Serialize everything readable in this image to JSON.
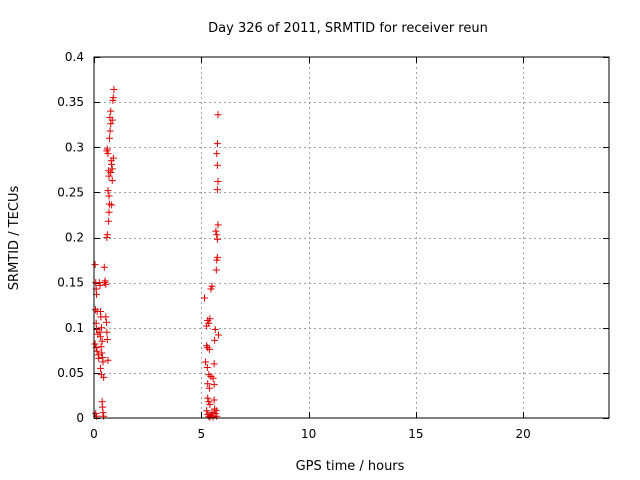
{
  "chart_data": {
    "type": "scatter",
    "title": "Day 326 of 2011, SRMTID for receiver reun",
    "xlabel": "GPS time / hours",
    "ylabel": "SRMTID / TECUs",
    "xlim": [
      0,
      24
    ],
    "ylim": [
      0,
      0.4
    ],
    "x_ticks": [
      0,
      5,
      10,
      15,
      20
    ],
    "x_tick_labels": [
      "0",
      "5",
      "10",
      "15",
      "20"
    ],
    "y_ticks": [
      0,
      0.05,
      0.1,
      0.15,
      0.2,
      0.25,
      0.3,
      0.35,
      0.4
    ],
    "y_tick_labels": [
      "0",
      "0.05",
      "0.1",
      "0.15",
      "0.2",
      "0.25",
      "0.3",
      "0.35",
      "0.4"
    ],
    "grid": true,
    "marker": "+",
    "color": "#e00000",
    "series": [
      {
        "points": [
          [
            0.05,
            0.17
          ],
          [
            0.08,
            0.15
          ],
          [
            0.1,
            0.143
          ],
          [
            0.12,
            0.137
          ],
          [
            0.07,
            0.12
          ],
          [
            0.15,
            0.118
          ],
          [
            0.1,
            0.105
          ],
          [
            0.12,
            0.098
          ],
          [
            0.18,
            0.093
          ],
          [
            0.05,
            0.082
          ],
          [
            0.1,
            0.078
          ],
          [
            0.14,
            0.074
          ],
          [
            0.2,
            0.07
          ],
          [
            0.22,
            0.066
          ],
          [
            0.08,
            0.005
          ],
          [
            0.12,
            0.002
          ],
          [
            0.25,
            0.15
          ],
          [
            0.28,
            0.147
          ],
          [
            0.3,
            0.118
          ],
          [
            0.32,
            0.112
          ],
          [
            0.35,
            0.1
          ],
          [
            0.27,
            0.095
          ],
          [
            0.3,
            0.09
          ],
          [
            0.38,
            0.085
          ],
          [
            0.33,
            0.079
          ],
          [
            0.36,
            0.072
          ],
          [
            0.4,
            0.067
          ],
          [
            0.42,
            0.062
          ],
          [
            0.3,
            0.055
          ],
          [
            0.35,
            0.048
          ],
          [
            0.45,
            0.045
          ],
          [
            0.38,
            0.018
          ],
          [
            0.4,
            0.012
          ],
          [
            0.42,
            0.006
          ],
          [
            0.45,
            0.002
          ],
          [
            0.5,
            0.15
          ],
          [
            0.52,
            0.152
          ],
          [
            0.55,
            0.148
          ],
          [
            0.48,
            0.167
          ],
          [
            0.55,
            0.112
          ],
          [
            0.58,
            0.106
          ],
          [
            0.6,
            0.095
          ],
          [
            0.62,
            0.087
          ],
          [
            0.65,
            0.064
          ],
          [
            0.6,
            0.2
          ],
          [
            0.62,
            0.203
          ],
          [
            0.6,
            0.296
          ],
          [
            0.62,
            0.298
          ],
          [
            0.65,
            0.293
          ],
          [
            0.68,
            0.274
          ],
          [
            0.7,
            0.268
          ],
          [
            0.65,
            0.252
          ],
          [
            0.7,
            0.246
          ],
          [
            0.72,
            0.237
          ],
          [
            0.7,
            0.228
          ],
          [
            0.68,
            0.218
          ],
          [
            0.72,
            0.31
          ],
          [
            0.75,
            0.318
          ],
          [
            0.78,
            0.326
          ],
          [
            0.74,
            0.333
          ],
          [
            0.78,
            0.34
          ],
          [
            0.8,
            0.285
          ],
          [
            0.82,
            0.281
          ],
          [
            0.85,
            0.276
          ],
          [
            0.78,
            0.272
          ],
          [
            0.85,
            0.263
          ],
          [
            0.82,
            0.236
          ],
          [
            0.85,
            0.33
          ],
          [
            0.88,
            0.352
          ],
          [
            0.9,
            0.355
          ],
          [
            0.93,
            0.364
          ],
          [
            0.9,
            0.288
          ],
          [
            5.15,
            0.133
          ],
          [
            5.3,
            0.108
          ],
          [
            5.35,
            0.105
          ],
          [
            5.25,
            0.102
          ],
          [
            5.4,
            0.11
          ],
          [
            5.25,
            0.08
          ],
          [
            5.3,
            0.078
          ],
          [
            5.38,
            0.076
          ],
          [
            5.2,
            0.062
          ],
          [
            5.28,
            0.056
          ],
          [
            5.35,
            0.048
          ],
          [
            5.45,
            0.046
          ],
          [
            5.3,
            0.038
          ],
          [
            5.38,
            0.033
          ],
          [
            5.3,
            0.022
          ],
          [
            5.35,
            0.018
          ],
          [
            5.4,
            0.015
          ],
          [
            5.25,
            0.008
          ],
          [
            5.3,
            0.004
          ],
          [
            5.35,
            0.002
          ],
          [
            5.4,
            0.001
          ],
          [
            5.45,
            0.003
          ],
          [
            5.5,
            0.006
          ],
          [
            5.55,
            0.001
          ],
          [
            5.45,
            0.143
          ],
          [
            5.5,
            0.146
          ],
          [
            5.6,
            0.06
          ],
          [
            5.62,
            0.086
          ],
          [
            5.65,
            0.098
          ],
          [
            5.55,
            0.044
          ],
          [
            5.6,
            0.02
          ],
          [
            5.62,
            0.01
          ],
          [
            5.65,
            0.005
          ],
          [
            5.7,
            0.008
          ],
          [
            5.72,
            0.002
          ],
          [
            5.6,
            0.037
          ],
          [
            5.7,
            0.164
          ],
          [
            5.72,
            0.175
          ],
          [
            5.75,
            0.178
          ],
          [
            5.68,
            0.207
          ],
          [
            5.72,
            0.203
          ],
          [
            5.75,
            0.198
          ],
          [
            5.78,
            0.214
          ],
          [
            5.75,
            0.253
          ],
          [
            5.78,
            0.262
          ],
          [
            5.75,
            0.28
          ],
          [
            5.72,
            0.293
          ],
          [
            5.75,
            0.304
          ],
          [
            5.78,
            0.336
          ],
          [
            5.8,
            0.092
          ]
        ]
      }
    ]
  }
}
